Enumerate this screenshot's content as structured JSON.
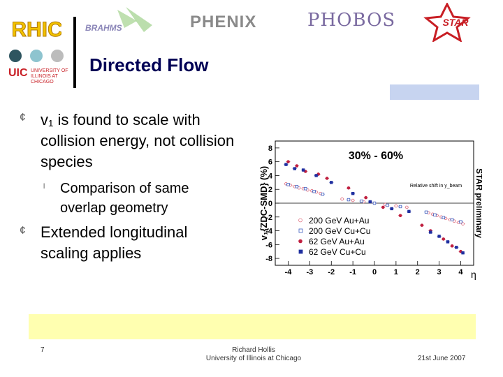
{
  "header": {
    "logos": {
      "rhic": "RHIC",
      "brahms": "BRAHMS",
      "phenix": "PHENIX",
      "phobos": "PHOBOS",
      "star": "STAR"
    },
    "uic": {
      "mark": "UIC",
      "sub": "UNIVERSITY OF ILLINOIS AT CHICAGO"
    },
    "title": "Directed Flow"
  },
  "bullets": [
    {
      "text": "v₁ is found to scale with collision energy, not collision species"
    },
    {
      "text": "Comparison of same overlap geometry"
    },
    {
      "text": "Extended longitudinal scaling applies"
    }
  ],
  "chart_data": {
    "type": "scatter",
    "ylabel": "v₁{ZDC-SMD} (%)",
    "xlabel": "η",
    "centrality_label": "30% - 60%",
    "side_label": "STAR preliminary",
    "annotation": "Relative shift in y_beam",
    "xticks": [
      "-4",
      "-3",
      "-2",
      "-1",
      "0",
      "1",
      "2",
      "3",
      "4"
    ],
    "yticks": [
      "8",
      "6",
      "4",
      "2",
      "0",
      "-2",
      "-4",
      "-6",
      "-8"
    ],
    "xlim": [
      -4.6,
      4.6
    ],
    "ylim": [
      -9,
      9
    ],
    "series": [
      {
        "name": "200 GeV Au+Au",
        "color": "#e07080",
        "marker": "open-circle",
        "x": [
          -4.1,
          -3.9,
          -3.7,
          -3.5,
          -3.3,
          -3.1,
          -2.9,
          -2.7,
          -2.5,
          -1.5,
          -1.0,
          -0.5,
          0.0,
          0.5,
          1.0,
          1.5,
          2.5,
          2.7,
          2.9,
          3.1,
          3.3,
          3.5,
          3.7,
          3.9,
          4.1
        ],
        "y": [
          2.8,
          2.6,
          2.4,
          2.2,
          2.1,
          1.9,
          1.8,
          1.6,
          1.4,
          0.6,
          0.4,
          0.2,
          0.0,
          -0.2,
          -0.4,
          -0.6,
          -1.4,
          -1.6,
          -1.8,
          -2.0,
          -2.2,
          -2.4,
          -2.6,
          -2.8,
          -3.0
        ]
      },
      {
        "name": "200 GeV Cu+Cu",
        "color": "#4060c0",
        "marker": "open-square",
        "x": [
          -4.0,
          -3.6,
          -3.2,
          -2.8,
          -2.4,
          -1.2,
          -0.6,
          0.0,
          0.6,
          1.2,
          2.4,
          2.8,
          3.2,
          3.6,
          4.0
        ],
        "y": [
          2.7,
          2.4,
          2.1,
          1.7,
          1.3,
          0.5,
          0.3,
          0.0,
          -0.3,
          -0.5,
          -1.3,
          -1.7,
          -2.1,
          -2.4,
          -2.7
        ]
      },
      {
        "name": "62 GeV Au+Au",
        "color": "#c02040",
        "marker": "filled-circle",
        "x": [
          -4.0,
          -3.6,
          -3.2,
          -2.6,
          -2.2,
          -1.2,
          -0.4,
          0.4,
          1.2,
          2.2,
          2.6,
          3.2,
          3.6,
          4.0
        ],
        "y": [
          6.0,
          5.4,
          4.6,
          4.2,
          3.6,
          2.2,
          0.8,
          -0.6,
          -1.8,
          -3.2,
          -4.0,
          -5.2,
          -6.2,
          -7.0
        ]
      },
      {
        "name": "62 GeV Cu+Cu",
        "color": "#2030a0",
        "marker": "filled-square",
        "x": [
          -4.1,
          -3.7,
          -3.3,
          -2.7,
          -2.0,
          -1.0,
          -0.2,
          0.8,
          1.6,
          2.6,
          3.0,
          3.4,
          3.8,
          4.1
        ],
        "y": [
          5.6,
          5.0,
          4.8,
          4.0,
          3.0,
          1.4,
          0.2,
          -0.8,
          -1.2,
          -4.2,
          -4.8,
          -5.6,
          -6.4,
          -7.2
        ]
      }
    ]
  },
  "footer": {
    "page": "7",
    "author_line1": "Richard Hollis",
    "author_line2": "University of Illinois at Chicago",
    "date": "21st June 2007"
  },
  "colors": {
    "title": "#000055",
    "highlight_yellow": "#ffffb0",
    "highlight_blue": "#c7d4f0"
  }
}
